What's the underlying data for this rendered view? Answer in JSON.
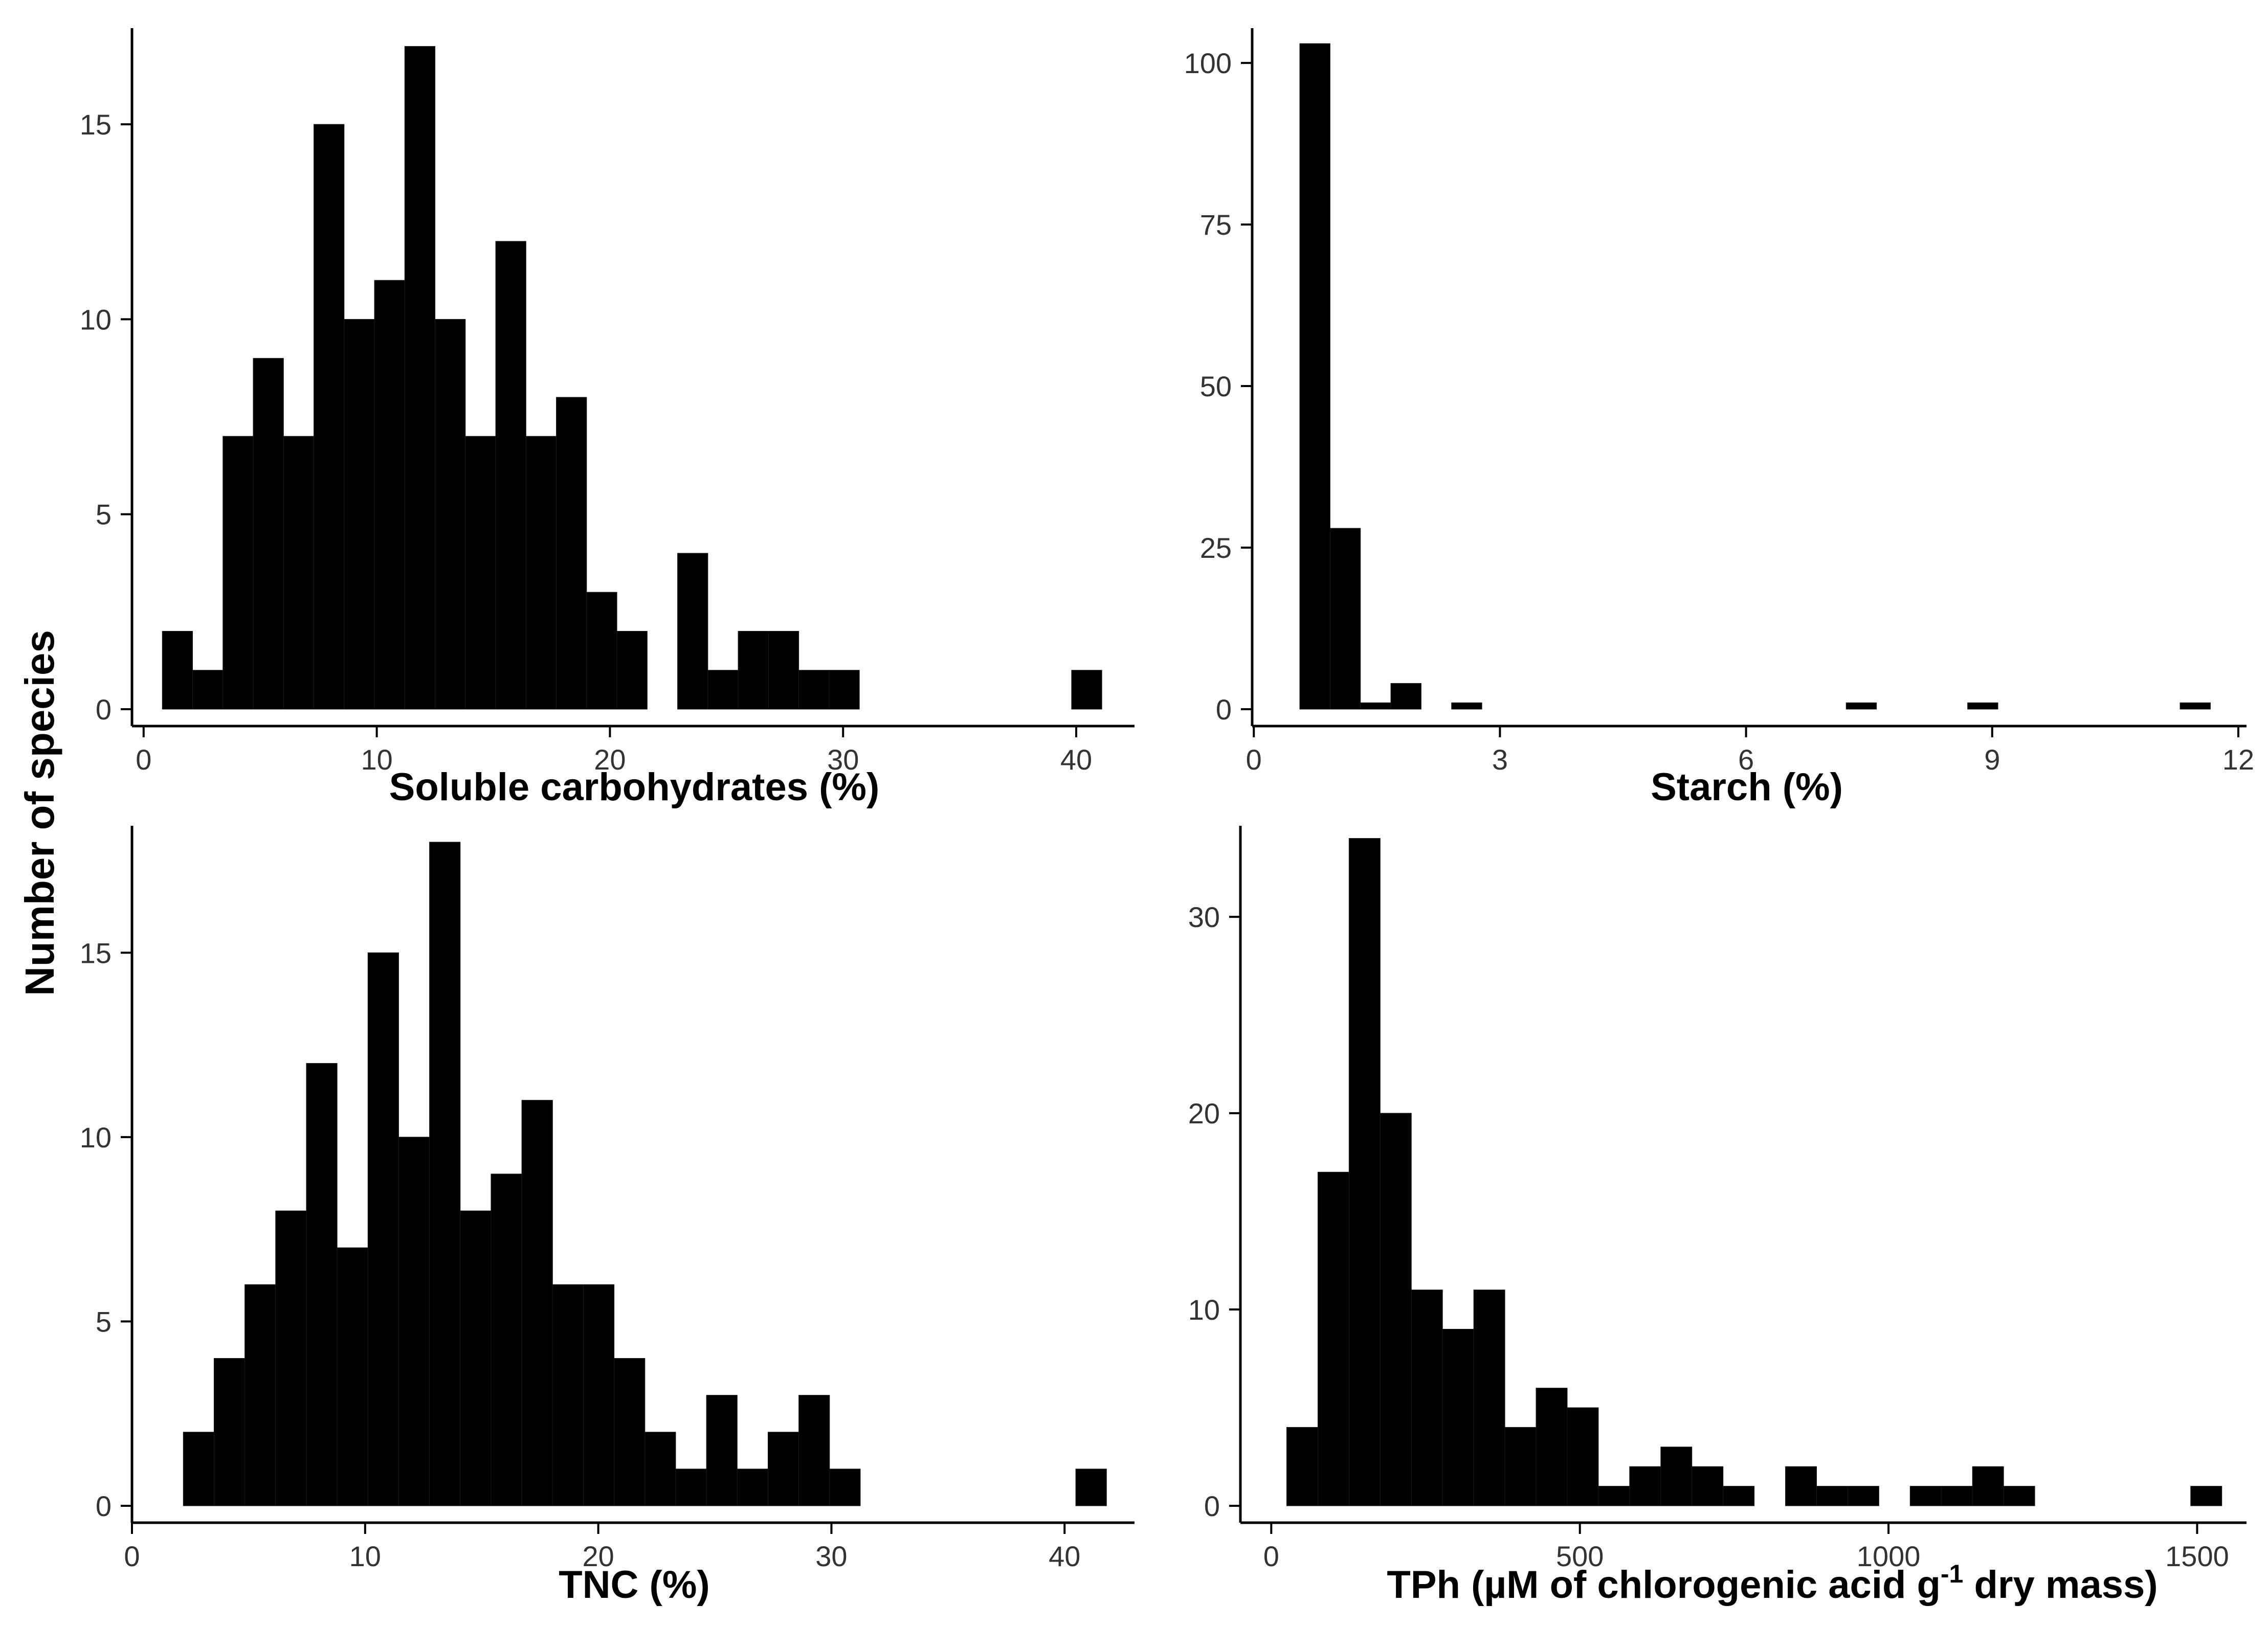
{
  "y_axis_title": "Number of species",
  "chart_data": [
    {
      "type": "bar",
      "panel": "top-left",
      "xlabel": "Soluble carbohydrates (%)",
      "ylabel": "Number of species",
      "xlim": [
        -0.5,
        42.5
      ],
      "ylim": [
        0,
        17.9
      ],
      "xticks": [
        0,
        10,
        20,
        30,
        40
      ],
      "yticks": [
        0,
        5,
        10,
        15
      ],
      "bins": {
        "start": 0.8,
        "width": 1.3
      },
      "values": [
        2,
        1,
        7,
        9,
        7,
        15,
        10,
        11,
        17,
        10,
        7,
        12,
        7,
        8,
        3,
        2,
        0,
        4,
        1,
        2,
        2,
        1,
        1,
        0,
        0,
        0,
        0,
        0,
        0,
        0,
        1
      ],
      "grid": false
    },
    {
      "type": "bar",
      "panel": "top-right",
      "xlabel": "Starch (%)",
      "ylabel": "Number of species",
      "xlim": [
        -0.02,
        12.1
      ],
      "ylim": [
        0,
        108
      ],
      "xticks": [
        0,
        3,
        6,
        9,
        12
      ],
      "yticks": [
        0,
        25,
        50,
        75,
        100
      ],
      "bins": {
        "start": 0.56,
        "width": 0.37
      },
      "values": [
        103,
        28,
        1,
        4,
        0,
        1,
        0,
        0,
        0,
        0,
        0,
        0,
        0,
        0,
        0,
        0,
        0,
        0,
        1,
        0,
        0,
        0,
        1,
        0,
        0,
        0,
        0,
        0,
        0,
        1
      ],
      "grid": false
    },
    {
      "type": "bar",
      "panel": "bottom-left",
      "xlabel": "TNC (%)",
      "ylabel": "Number of species",
      "xlim": [
        0,
        43
      ],
      "ylim": [
        0,
        18.9
      ],
      "xticks": [
        0,
        10,
        20,
        30,
        40
      ],
      "yticks": [
        0,
        5,
        10,
        15
      ],
      "bins": {
        "start": 2.2,
        "width": 1.32
      },
      "values": [
        2,
        4,
        6,
        8,
        12,
        7,
        15,
        10,
        18,
        8,
        9,
        11,
        6,
        6,
        4,
        2,
        1,
        3,
        1,
        2,
        3,
        1,
        0,
        0,
        0,
        0,
        0,
        0,
        0,
        1
      ],
      "grid": false
    },
    {
      "type": "bar",
      "panel": "bottom-right",
      "xlabel": "TPh (µM of chlorogenic acid g⁻¹ dry mass)",
      "ylabel": "Number of species",
      "xlim": [
        -50,
        1580
      ],
      "ylim": [
        0,
        35.5
      ],
      "xticks": [
        0,
        500,
        1000,
        1500
      ],
      "yticks": [
        0,
        10,
        20,
        30
      ],
      "bins": {
        "start": 25,
        "width": 50.5
      },
      "values": [
        4,
        17,
        34,
        20,
        11,
        9,
        11,
        4,
        6,
        5,
        1,
        2,
        3,
        2,
        1,
        0,
        2,
        1,
        1,
        0,
        1,
        1,
        2,
        1,
        0,
        0,
        0,
        0,
        0,
        1
      ],
      "grid": false
    }
  ]
}
